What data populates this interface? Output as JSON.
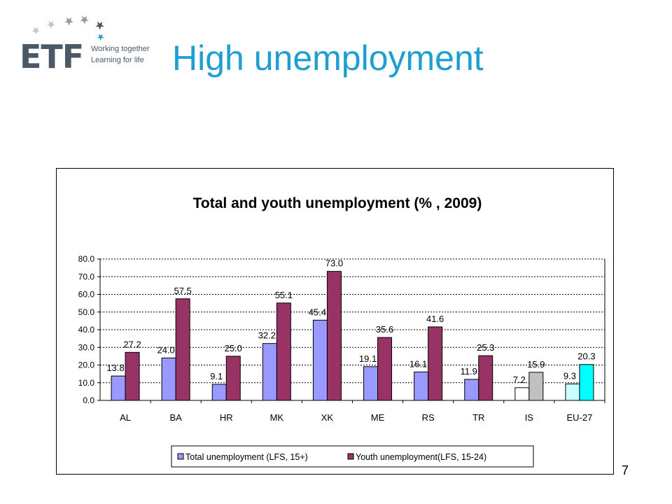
{
  "logo": {
    "name": "ETF",
    "tagline1": "Working together",
    "tagline2": "Learning for life"
  },
  "slide": {
    "title": "High unemployment",
    "page_number": "7"
  },
  "colors": {
    "title": "#1e9fcf",
    "total": "#9999ff",
    "youth": "#993366",
    "is_total": "#ffffff",
    "is_youth": "#c0c0c0",
    "eu_total": "#ccffff",
    "eu_youth": "#00ffff"
  },
  "chart_data": {
    "type": "bar",
    "title": "Total and youth unemployment (% , 2009)",
    "xlabel": "",
    "ylabel": "",
    "categories": [
      "AL",
      "BA",
      "HR",
      "MK",
      "XK",
      "ME",
      "RS",
      "TR",
      "IS",
      "EU-27"
    ],
    "series": [
      {
        "name": "Total unemployment (LFS, 15+)",
        "values": [
          13.8,
          24.0,
          9.1,
          32.2,
          45.4,
          19.1,
          16.1,
          11.9,
          7.2,
          9.3
        ]
      },
      {
        "name": "Youth unemployment(LFS, 15-24)",
        "values": [
          27.2,
          57.5,
          25.0,
          55.1,
          73.0,
          35.6,
          41.6,
          25.3,
          15.9,
          20.3
        ]
      }
    ],
    "data_labels": [
      [
        "13.8",
        "24.0",
        "9.1",
        "32.2",
        "45.4",
        "19.1",
        "16.1",
        "11.9",
        "7.2",
        "9.3"
      ],
      [
        "27.2",
        "57.5",
        "25.0",
        "55.1",
        "73.0",
        "35.6",
        "41.6",
        "25.3",
        "15.9",
        "20.3"
      ]
    ],
    "ylim": [
      0,
      80
    ],
    "yticks": [
      "0.0",
      "10.0",
      "20.0",
      "30.0",
      "40.0",
      "50.0",
      "60.0",
      "70.0",
      "80.0"
    ],
    "grid": true,
    "legend_position": "bottom"
  }
}
